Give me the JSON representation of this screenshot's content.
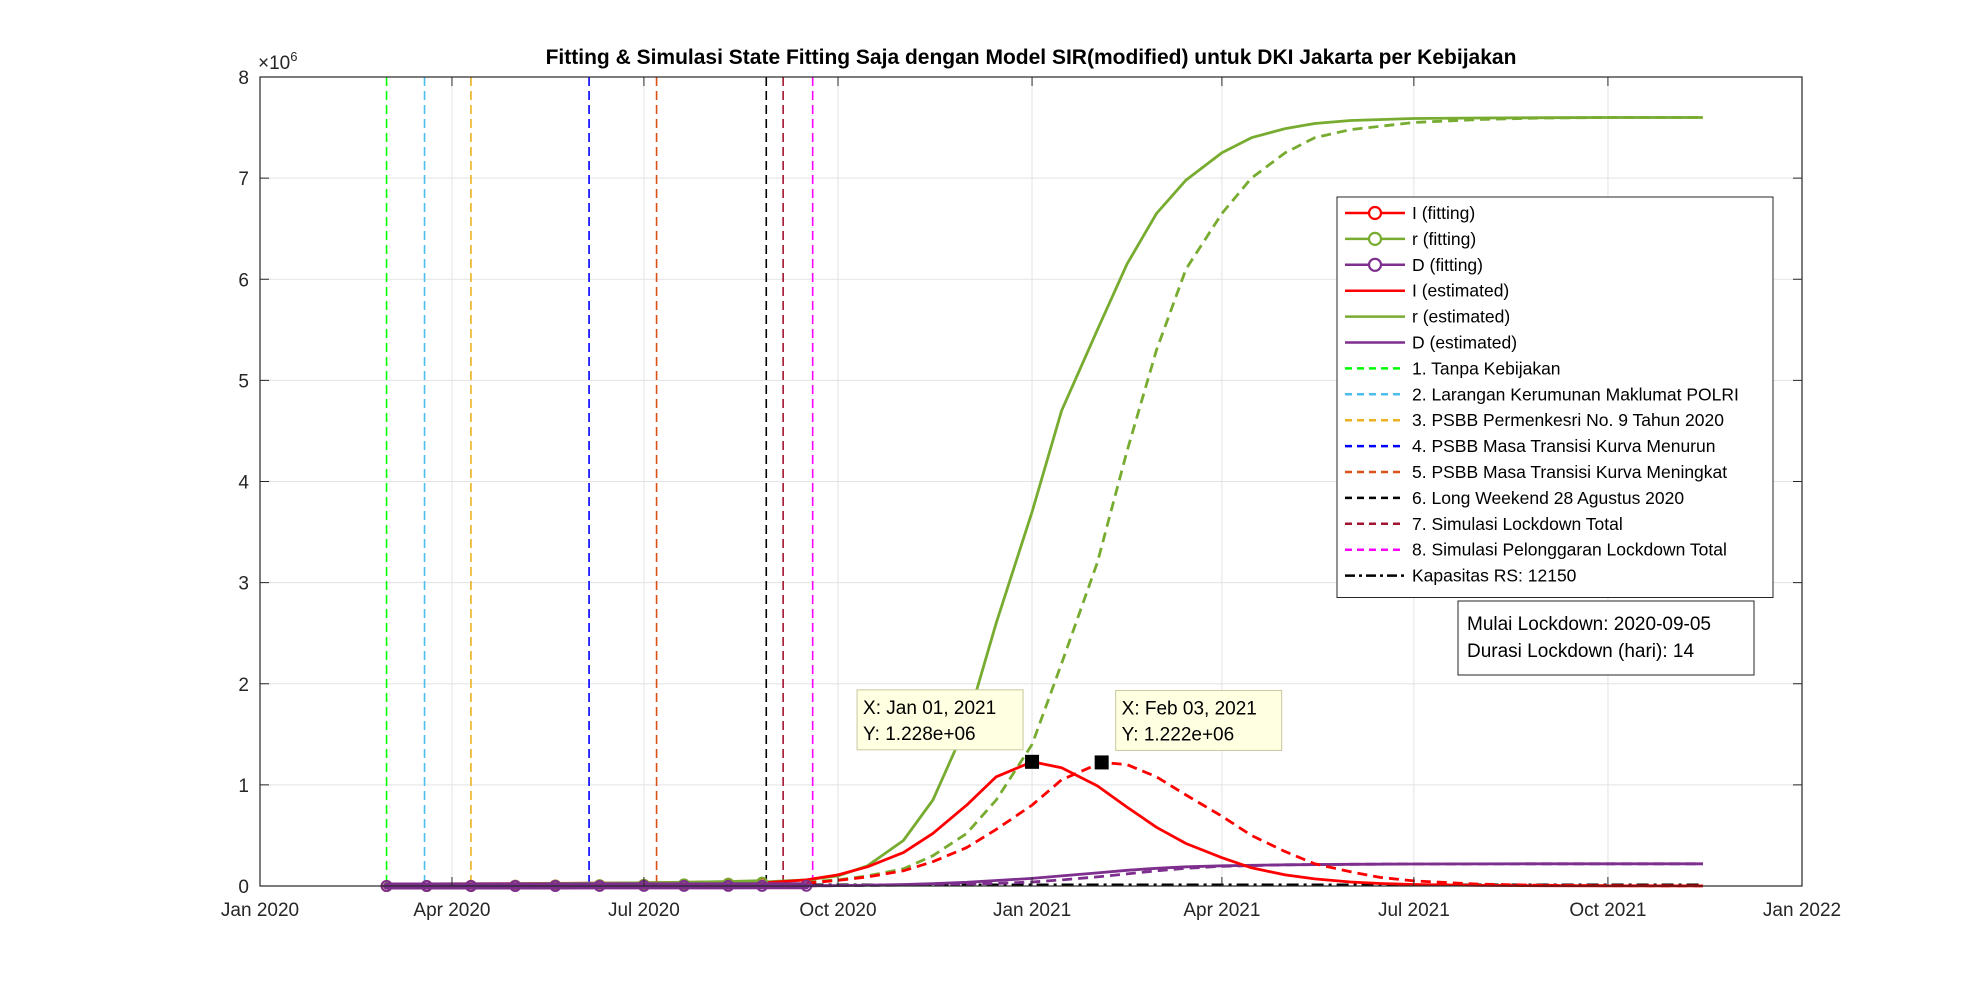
{
  "chart_data": {
    "type": "line",
    "title": "Fitting & Simulasi State Fitting Saja dengan Model SIR(modified) untuk DKI Jakarta per Kebijakan",
    "y_exponent_label": "×10",
    "y_exponent_power": "6",
    "x_range": [
      "2020-01-01",
      "2022-01-01"
    ],
    "y_range": [
      0,
      8000000
    ],
    "grid": true,
    "x_ticks": [
      {
        "date": "2020-01-01",
        "label": "Jan 2020"
      },
      {
        "date": "2020-04-01",
        "label": "Apr 2020"
      },
      {
        "date": "2020-07-01",
        "label": "Jul 2020"
      },
      {
        "date": "2020-10-01",
        "label": "Oct 2020"
      },
      {
        "date": "2021-01-01",
        "label": "Jan 2021"
      },
      {
        "date": "2021-04-01",
        "label": "Apr 2021"
      },
      {
        "date": "2021-07-01",
        "label": "Jul 2021"
      },
      {
        "date": "2021-10-01",
        "label": "Oct 2021"
      },
      {
        "date": "2022-01-01",
        "label": "Jan 2022"
      }
    ],
    "y_ticks": [
      {
        "value": 0,
        "label": "0"
      },
      {
        "value": 1000000,
        "label": "1"
      },
      {
        "value": 2000000,
        "label": "2"
      },
      {
        "value": 3000000,
        "label": "3"
      },
      {
        "value": 4000000,
        "label": "4"
      },
      {
        "value": 5000000,
        "label": "5"
      },
      {
        "value": 6000000,
        "label": "6"
      },
      {
        "value": 7000000,
        "label": "7"
      },
      {
        "value": 8000000,
        "label": "8"
      }
    ],
    "series": [
      {
        "name": "I (fitting)",
        "color": "#ff0000",
        "style": "marker",
        "x": [
          "2020-03-01",
          "2020-03-20",
          "2020-04-10",
          "2020-05-01",
          "2020-05-20",
          "2020-06-10",
          "2020-07-01",
          "2020-07-20",
          "2020-08-10",
          "2020-08-26"
        ],
        "y": [
          0,
          200,
          1000,
          2500,
          4500,
          7500,
          11000,
          15000,
          21000,
          28000
        ]
      },
      {
        "name": "r (fitting)",
        "color": "#77ac30",
        "style": "marker",
        "x": [
          "2020-03-01",
          "2020-03-20",
          "2020-04-10",
          "2020-05-01",
          "2020-05-20",
          "2020-06-10",
          "2020-07-01",
          "2020-07-20",
          "2020-08-10",
          "2020-08-26"
        ],
        "y": [
          0,
          100,
          500,
          2000,
          4000,
          7000,
          11000,
          16000,
          24000,
          33000
        ]
      },
      {
        "name": "D (fitting)",
        "color": "#7e2f8e",
        "style": "marker",
        "x": [
          "2020-03-01",
          "2020-03-20",
          "2020-04-10",
          "2020-05-01",
          "2020-05-20",
          "2020-06-10",
          "2020-07-01",
          "2020-07-20",
          "2020-08-10",
          "2020-08-26",
          "2020-09-16"
        ],
        "y": [
          0,
          30,
          150,
          300,
          450,
          600,
          800,
          1000,
          1300,
          1600,
          2000
        ]
      },
      {
        "name": "I (estimated)",
        "color": "#ff0000",
        "style": "solid",
        "x": [
          "2020-08-26",
          "2020-09-16",
          "2020-10-01",
          "2020-10-15",
          "2020-11-01",
          "2020-11-15",
          "2020-12-01",
          "2020-12-15",
          "2021-01-01",
          "2021-01-15",
          "2021-02-01",
          "2021-02-15",
          "2021-03-01",
          "2021-03-15",
          "2021-04-01",
          "2021-04-15",
          "2021-05-01",
          "2021-05-15",
          "2021-06-01",
          "2021-06-15",
          "2021-07-01",
          "2021-08-01",
          "2021-09-01",
          "2021-10-01",
          "2021-11-15"
        ],
        "y": [
          30000,
          60000,
          110000,
          190000,
          330000,
          520000,
          800000,
          1080000,
          1228000,
          1170000,
          990000,
          780000,
          580000,
          420000,
          280000,
          180000,
          110000,
          70000,
          40000,
          25000,
          15000,
          6000,
          3000,
          1000,
          500
        ]
      },
      {
        "name": "r (estimated)",
        "color": "#77ac30",
        "style": "solid",
        "x": [
          "2020-08-26",
          "2020-09-16",
          "2020-10-01",
          "2020-10-15",
          "2020-11-01",
          "2020-11-15",
          "2020-12-01",
          "2020-12-15",
          "2021-01-01",
          "2021-01-15",
          "2021-02-01",
          "2021-02-15",
          "2021-03-01",
          "2021-03-15",
          "2021-04-01",
          "2021-04-15",
          "2021-05-01",
          "2021-05-15",
          "2021-06-01",
          "2021-07-01",
          "2021-08-01",
          "2021-09-01",
          "2021-10-01",
          "2021-11-15"
        ],
        "y": [
          40000,
          60000,
          100000,
          200000,
          450000,
          850000,
          1600000,
          2600000,
          3700000,
          4700000,
          5500000,
          6150000,
          6650000,
          6980000,
          7250000,
          7400000,
          7490000,
          7540000,
          7570000,
          7590000,
          7595000,
          7598000,
          7600000,
          7600000
        ]
      },
      {
        "name": "D (estimated)",
        "color": "#7e2f8e",
        "style": "solid",
        "x": [
          "2020-09-16",
          "2020-10-01",
          "2020-10-15",
          "2020-11-01",
          "2020-11-15",
          "2020-12-01",
          "2020-12-15",
          "2021-01-01",
          "2021-01-15",
          "2021-02-01",
          "2021-02-15",
          "2021-03-01",
          "2021-03-15",
          "2021-04-01",
          "2021-05-01",
          "2021-06-01",
          "2021-07-01",
          "2021-09-01",
          "2021-11-15"
        ],
        "y": [
          2000,
          4000,
          8000,
          15000,
          24000,
          37000,
          54000,
          75000,
          100000,
          130000,
          155000,
          175000,
          190000,
          200000,
          210000,
          215000,
          218000,
          220000,
          220000
        ]
      },
      {
        "name": "",
        "color": "#ff0000",
        "style": "dashed",
        "x": [
          "2020-09-16",
          "2020-10-01",
          "2020-10-15",
          "2020-11-01",
          "2020-11-15",
          "2020-12-01",
          "2020-12-15",
          "2021-01-01",
          "2021-01-15",
          "2021-02-03",
          "2021-02-15",
          "2021-03-01",
          "2021-03-15",
          "2021-04-01",
          "2021-04-15",
          "2021-05-01",
          "2021-05-15",
          "2021-06-01",
          "2021-06-15",
          "2021-07-01",
          "2021-08-01",
          "2021-09-01",
          "2021-10-01",
          "2021-11-15"
        ],
        "y": [
          30000,
          55000,
          90000,
          150000,
          240000,
          380000,
          560000,
          800000,
          1050000,
          1222000,
          1200000,
          1080000,
          900000,
          690000,
          500000,
          340000,
          220000,
          140000,
          85000,
          50000,
          18000,
          7000,
          3000,
          1000
        ]
      },
      {
        "name": "",
        "color": "#77ac30",
        "style": "dashed",
        "x": [
          "2020-09-16",
          "2020-10-01",
          "2020-10-15",
          "2020-11-01",
          "2020-11-15",
          "2020-12-01",
          "2020-12-15",
          "2021-01-01",
          "2021-01-15",
          "2021-02-01",
          "2021-02-15",
          "2021-03-01",
          "2021-03-15",
          "2021-04-01",
          "2021-04-15",
          "2021-05-01",
          "2021-05-15",
          "2021-06-01",
          "2021-07-01",
          "2021-08-01",
          "2021-09-01",
          "2021-10-01",
          "2021-11-15"
        ],
        "y": [
          40000,
          60000,
          100000,
          170000,
          300000,
          520000,
          850000,
          1400000,
          2200000,
          3200000,
          4300000,
          5300000,
          6100000,
          6650000,
          7000000,
          7250000,
          7400000,
          7480000,
          7550000,
          7580000,
          7595000,
          7600000,
          7600000
        ]
      },
      {
        "name": "",
        "color": "#7e2f8e",
        "style": "dashed",
        "x": [
          "2020-09-16",
          "2020-10-15",
          "2020-11-15",
          "2020-12-15",
          "2021-01-01",
          "2021-01-15",
          "2021-02-01",
          "2021-02-15",
          "2021-03-01",
          "2021-03-15",
          "2021-04-01",
          "2021-05-01",
          "2021-06-01",
          "2021-07-01",
          "2021-09-01",
          "2021-11-15"
        ],
        "y": [
          2000,
          5000,
          12000,
          26000,
          40000,
          60000,
          90000,
          120000,
          150000,
          175000,
          195000,
          210000,
          215000,
          218000,
          220000,
          220000
        ]
      },
      {
        "name": "Kapasitas RS: 12150",
        "color": "#000000",
        "style": "dashdot",
        "x": [
          "2020-03-01",
          "2021-11-15"
        ],
        "y": [
          12150,
          12150
        ]
      }
    ],
    "policy_lines": [
      {
        "name": "1. Tanpa Kebijakan",
        "date": "2020-03-01",
        "color": "#00ff00"
      },
      {
        "name": "2. Larangan Kerumunan Maklumat POLRI",
        "date": "2020-03-19",
        "color": "#4dbeee"
      },
      {
        "name": "3. PSBB Permenkesri No. 9 Tahun 2020",
        "date": "2020-04-10",
        "color": "#edb120"
      },
      {
        "name": "4. PSBB Masa Transisi Kurva Menurun",
        "date": "2020-06-05",
        "color": "#0000ff"
      },
      {
        "name": "5. PSBB Masa Transisi Kurva Meningkat",
        "date": "2020-07-07",
        "color": "#d95319"
      },
      {
        "name": "6. Long Weekend 28 Agustus 2020",
        "date": "2020-08-28",
        "color": "#000000"
      },
      {
        "name": "7. Simulasi Lockdown Total",
        "date": "2020-09-05",
        "color": "#a2142f"
      },
      {
        "name": "8. Simulasi Pelonggaran Lockdown Total",
        "date": "2020-09-19",
        "color": "#ff00ff"
      }
    ],
    "data_tips": [
      {
        "x": "2021-01-01",
        "y": 1228000,
        "line1": "X: Jan 01, 2021",
        "line2": "Y: 1.228e+06",
        "side": "left"
      },
      {
        "x": "2021-02-03",
        "y": 1222000,
        "line1": "X: Feb 03, 2021",
        "line2": "Y: 1.222e+06",
        "side": "right"
      }
    ],
    "annotation": {
      "line1": "Mulai Lockdown: 2020-09-05",
      "line2": "Durasi Lockdown (hari): 14"
    },
    "legend_position": "upper-right inside",
    "legend_entries": [
      {
        "label": "I (fitting)",
        "color": "#ff0000",
        "kind": "marker-line"
      },
      {
        "label": "r (fitting)",
        "color": "#77ac30",
        "kind": "marker-line"
      },
      {
        "label": "D (fitting)",
        "color": "#7e2f8e",
        "kind": "marker-line"
      },
      {
        "label": "I (estimated)",
        "color": "#ff0000",
        "kind": "solid"
      },
      {
        "label": "r (estimated)",
        "color": "#77ac30",
        "kind": "solid"
      },
      {
        "label": "D (estimated)",
        "color": "#7e2f8e",
        "kind": "solid"
      },
      {
        "label": "1. Tanpa Kebijakan",
        "color": "#00ff00",
        "kind": "dashed"
      },
      {
        "label": "2. Larangan Kerumunan Maklumat POLRI",
        "color": "#4dbeee",
        "kind": "dashed"
      },
      {
        "label": "3. PSBB Permenkesri No. 9 Tahun 2020",
        "color": "#edb120",
        "kind": "dashed"
      },
      {
        "label": "4. PSBB Masa Transisi Kurva Menurun",
        "color": "#0000ff",
        "kind": "dashed"
      },
      {
        "label": "5. PSBB Masa Transisi Kurva Meningkat",
        "color": "#d95319",
        "kind": "dashed"
      },
      {
        "label": "6. Long Weekend 28 Agustus 2020",
        "color": "#000000",
        "kind": "dashed"
      },
      {
        "label": "7. Simulasi Lockdown Total",
        "color": "#a2142f",
        "kind": "dashed"
      },
      {
        "label": "8. Simulasi Pelonggaran Lockdown Total",
        "color": "#ff00ff",
        "kind": "dashed"
      },
      {
        "label": "Kapasitas RS: 12150",
        "color": "#000000",
        "kind": "dashdot"
      }
    ]
  }
}
